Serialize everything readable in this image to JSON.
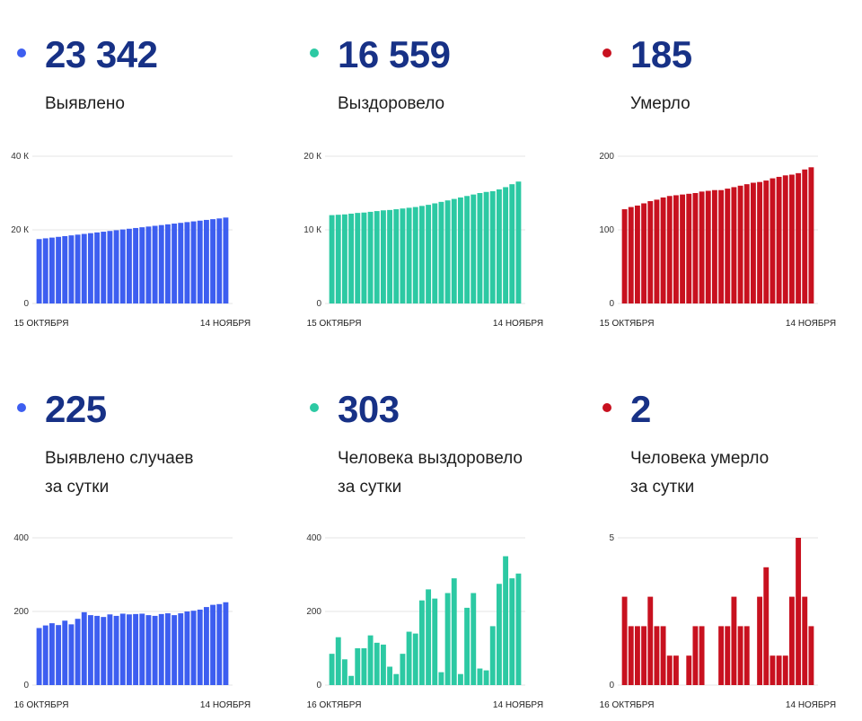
{
  "colors": {
    "blue": "#3d5ef0",
    "teal": "#2cc9a3",
    "red": "#c8111f",
    "number": "#173186"
  },
  "panels": [
    {
      "value": "23 342",
      "label_line1": "Выявлено",
      "label_line2": "",
      "color": "#3d5ef0"
    },
    {
      "value": "16 559",
      "label_line1": "Выздоровело",
      "label_line2": "",
      "color": "#2cc9a3"
    },
    {
      "value": "185",
      "label_line1": "Умерло",
      "label_line2": "",
      "color": "#c8111f"
    },
    {
      "value": "225",
      "label_line1": "Выявлено случаев",
      "label_line2": "за сутки",
      "color": "#3d5ef0"
    },
    {
      "value": "303",
      "label_line1": "Человека выздоровело",
      "label_line2": "за сутки",
      "color": "#2cc9a3"
    },
    {
      "value": "2",
      "label_line1": "Человека умерло",
      "label_line2": "за сутки",
      "color": "#c8111f"
    }
  ],
  "chart_data": [
    {
      "type": "bar",
      "color": "#3d5ef0",
      "yticks": [
        0,
        20000,
        40000
      ],
      "ytick_labels": [
        "0",
        "20 К",
        "40 К"
      ],
      "ylim": [
        0,
        40000
      ],
      "x_start_label": "15 ОКТЯБРЯ",
      "x_end_label": "14 НОЯБРЯ",
      "values": [
        17500,
        17700,
        17900,
        18100,
        18300,
        18500,
        18700,
        18900,
        19100,
        19300,
        19500,
        19700,
        19900,
        20100,
        20300,
        20500,
        20700,
        20900,
        21100,
        21300,
        21500,
        21700,
        21900,
        22100,
        22300,
        22500,
        22700,
        22900,
        23100,
        23342
      ]
    },
    {
      "type": "bar",
      "color": "#2cc9a3",
      "yticks": [
        0,
        10000,
        20000
      ],
      "ytick_labels": [
        "0",
        "10 К",
        "20 К"
      ],
      "ylim": [
        0,
        20000
      ],
      "x_start_label": "15 ОКТЯБРЯ",
      "x_end_label": "14 НОЯБРЯ",
      "values": [
        12000,
        12050,
        12100,
        12200,
        12300,
        12350,
        12450,
        12550,
        12650,
        12700,
        12800,
        12900,
        13000,
        13100,
        13250,
        13400,
        13600,
        13800,
        14000,
        14200,
        14400,
        14600,
        14800,
        15000,
        15150,
        15250,
        15500,
        15800,
        16200,
        16559
      ]
    },
    {
      "type": "bar",
      "color": "#c8111f",
      "yticks": [
        0,
        100,
        200
      ],
      "ytick_labels": [
        "0",
        "100",
        "200"
      ],
      "ylim": [
        0,
        200
      ],
      "x_start_label": "15 ОКТЯБРЯ",
      "x_end_label": "14 НОЯБРЯ",
      "values": [
        128,
        131,
        133,
        136,
        139,
        141,
        144,
        146,
        147,
        148,
        149,
        150,
        152,
        153,
        154,
        154,
        156,
        158,
        160,
        162,
        164,
        165,
        167,
        170,
        172,
        174,
        175,
        177,
        182,
        185
      ]
    },
    {
      "type": "bar",
      "color": "#3d5ef0",
      "yticks": [
        0,
        200,
        400
      ],
      "ytick_labels": [
        "0",
        "200",
        "400"
      ],
      "ylim": [
        0,
        400
      ],
      "x_start_label": "16 ОКТЯБРЯ",
      "x_end_label": "14 НОЯБРЯ",
      "values": [
        155,
        162,
        168,
        163,
        175,
        165,
        180,
        198,
        190,
        188,
        185,
        192,
        188,
        194,
        192,
        193,
        194,
        190,
        188,
        193,
        195,
        190,
        195,
        200,
        202,
        205,
        212,
        218,
        220,
        225
      ]
    },
    {
      "type": "bar",
      "color": "#2cc9a3",
      "yticks": [
        0,
        200,
        400
      ],
      "ytick_labels": [
        "0",
        "200",
        "400"
      ],
      "ylim": [
        0,
        400
      ],
      "x_start_label": "16 ОКТЯБРЯ",
      "x_end_label": "14 НОЯБРЯ",
      "values": [
        85,
        130,
        70,
        25,
        100,
        100,
        135,
        115,
        110,
        50,
        30,
        85,
        145,
        140,
        230,
        260,
        235,
        35,
        250,
        290,
        30,
        210,
        250,
        45,
        40,
        160,
        275,
        350,
        290,
        303
      ]
    },
    {
      "type": "bar",
      "color": "#c8111f",
      "yticks": [
        0,
        5
      ],
      "ytick_labels": [
        "0",
        "5"
      ],
      "ylim": [
        0,
        5
      ],
      "x_start_label": "16 ОКТЯБРЯ",
      "x_end_label": "14 НОЯБРЯ",
      "values": [
        3,
        2,
        2,
        2,
        3,
        2,
        2,
        1,
        1,
        0,
        1,
        2,
        2,
        0,
        0,
        2,
        2,
        3,
        2,
        2,
        0,
        3,
        4,
        1,
        1,
        1,
        3,
        5,
        3,
        2
      ]
    }
  ]
}
